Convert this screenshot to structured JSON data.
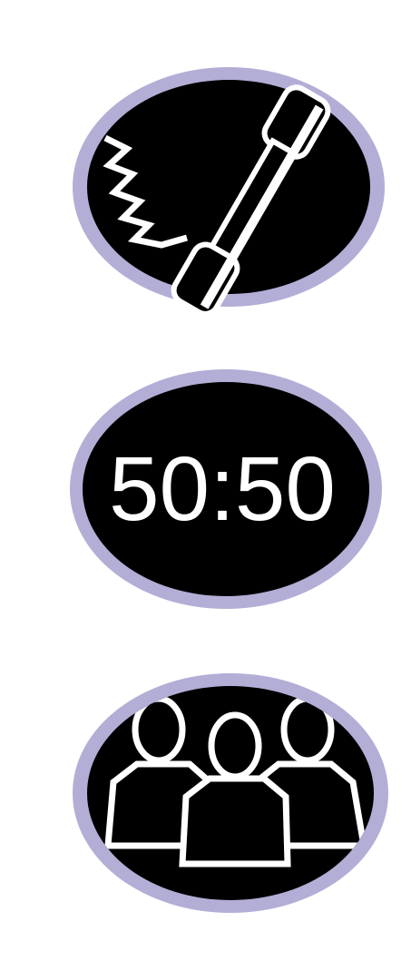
{
  "lifelines": {
    "phone_a_friend": {
      "icon": "phone-handset-icon"
    },
    "fifty_fifty": {
      "label": "50:50",
      "icon": "fifty-fifty-icon"
    },
    "ask_the_audience": {
      "icon": "audience-people-icon"
    }
  },
  "colors": {
    "ring": "#b3aed6",
    "face": "#000000",
    "glyph": "#ffffff",
    "background": "#ffffff"
  }
}
